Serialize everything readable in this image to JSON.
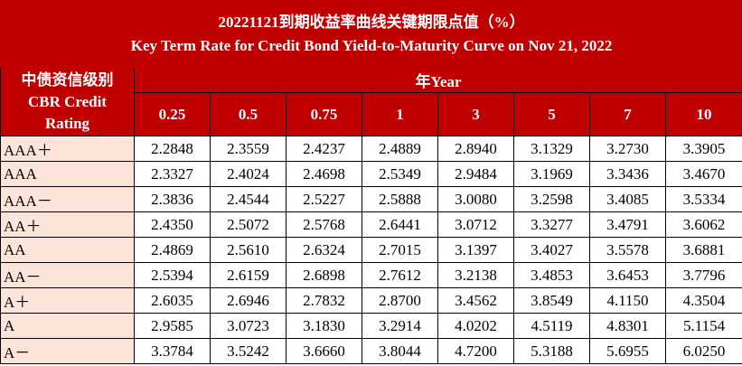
{
  "title": {
    "zh": "20221121到期收益率曲线关键期限点值（%）",
    "en": "Key Term Rate for Credit Bond Yield-to-Maturity Curve on Nov 21, 2022"
  },
  "header": {
    "rating_zh": "中债资信级别",
    "rating_en_1": "CBR Credit",
    "rating_en_2": "Rating",
    "year_label": "年Year",
    "terms": [
      "0.25",
      "0.5",
      "0.75",
      "1",
      "3",
      "5",
      "7",
      "10"
    ]
  },
  "colors": {
    "header_bg": "#c00000",
    "rating_bg": "#fde4d8"
  },
  "rows": [
    {
      "rating": "AAA＋",
      "values": [
        "2.2848",
        "2.3559",
        "2.4237",
        "2.4889",
        "2.8940",
        "3.1329",
        "3.2730",
        "3.3905"
      ]
    },
    {
      "rating": "AAA",
      "values": [
        "2.3327",
        "2.4024",
        "2.4698",
        "2.5349",
        "2.9484",
        "3.1969",
        "3.3436",
        "3.4670"
      ]
    },
    {
      "rating": "AAA－",
      "values": [
        "2.3836",
        "2.4544",
        "2.5227",
        "2.5888",
        "3.0080",
        "3.2598",
        "3.4085",
        "3.5334"
      ]
    },
    {
      "rating": "AA＋",
      "values": [
        "2.4350",
        "2.5072",
        "2.5768",
        "2.6441",
        "3.0712",
        "3.3277",
        "3.4791",
        "3.6062"
      ]
    },
    {
      "rating": "AA",
      "values": [
        "2.4869",
        "2.5610",
        "2.6324",
        "2.7015",
        "3.1397",
        "3.4027",
        "3.5578",
        "3.6881"
      ]
    },
    {
      "rating": "AA－",
      "values": [
        "2.5394",
        "2.6159",
        "2.6898",
        "2.7612",
        "3.2138",
        "3.4853",
        "3.6453",
        "3.7796"
      ]
    },
    {
      "rating": "A＋",
      "values": [
        "2.6035",
        "2.6946",
        "2.7832",
        "2.8700",
        "3.4562",
        "3.8549",
        "4.1150",
        "4.3504"
      ]
    },
    {
      "rating": "A",
      "values": [
        "2.9585",
        "3.0723",
        "3.1830",
        "3.2914",
        "4.0202",
        "4.5119",
        "4.8301",
        "5.1154"
      ]
    },
    {
      "rating": "A－",
      "values": [
        "3.3784",
        "3.5242",
        "3.6660",
        "3.8044",
        "4.7200",
        "5.3188",
        "5.6955",
        "6.0250"
      ]
    }
  ]
}
